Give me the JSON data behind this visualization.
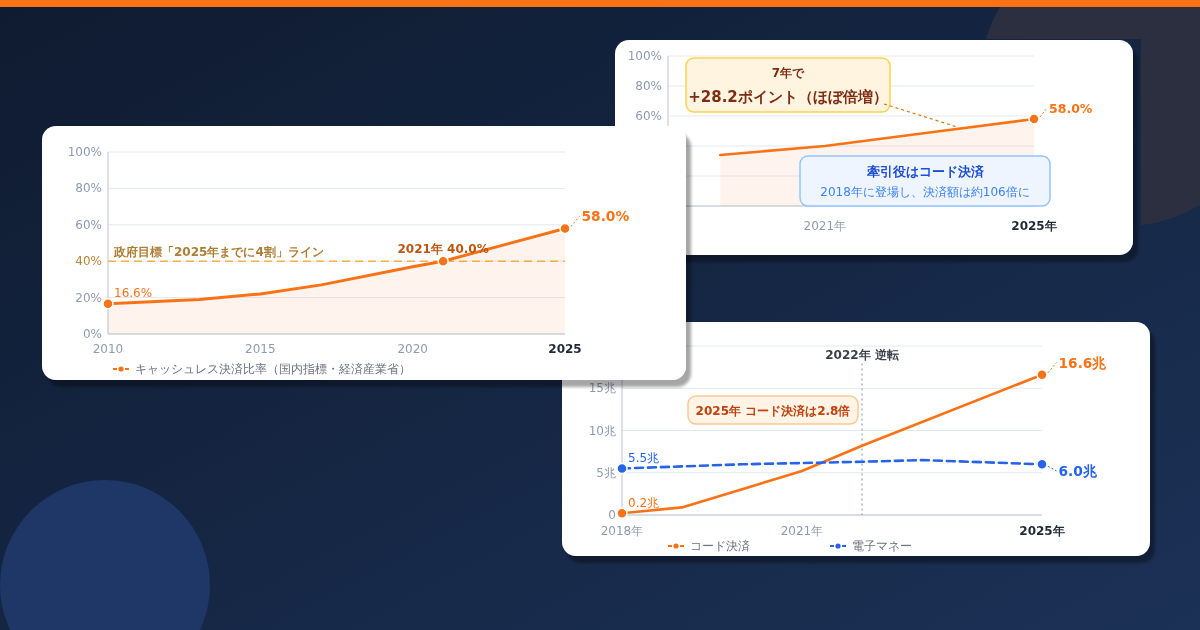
{
  "chart_data": [
    {
      "type": "area",
      "x": [
        2010,
        2013,
        2015,
        2017,
        2020,
        2021,
        2025
      ],
      "series": [
        {
          "name": "キャッシュレス決済比率（国内指標・経済産業省）",
          "color": "#f97316",
          "values": [
            16.6,
            19,
            22,
            27,
            37,
            40.0,
            58.0
          ]
        }
      ],
      "xlim": [
        2010,
        2025
      ],
      "xticks": [
        2010,
        2015,
        2020,
        2025
      ],
      "ylim": [
        0,
        100
      ],
      "yticks": [
        {
          "value": 0,
          "label": "0%"
        },
        {
          "value": 20,
          "label": "20%"
        },
        {
          "value": 40,
          "label": "40%"
        },
        {
          "value": 60,
          "label": "60%"
        },
        {
          "value": 80,
          "label": "80%"
        },
        {
          "value": 100,
          "label": "100%"
        }
      ],
      "grid": "y",
      "legend": "bottom",
      "ref_lines": [
        {
          "axis": "y",
          "value": 40,
          "label": "政府目標「2025年までに4割」ライン",
          "color": "#f7b24a",
          "line_style": "dashed"
        }
      ],
      "annotations": [
        {
          "text": "16.6%",
          "x": 2010,
          "y": 16.6
        },
        {
          "text": "2021年 40.0%",
          "x": 2021,
          "y": 40.0
        },
        {
          "text": "58.0%",
          "x": 2025,
          "y": 58.0
        }
      ]
    },
    {
      "type": "area",
      "x": [
        2019,
        2021,
        2023,
        2025
      ],
      "series": [
        {
          "color": "#f97316",
          "values": [
            34,
            40,
            49,
            58.0
          ]
        }
      ],
      "xlim": [
        2018,
        2025
      ],
      "xticks": [
        {
          "value": 2021,
          "label": "2021年"
        },
        {
          "value": 2025,
          "label": "2025年"
        }
      ],
      "ylim": [
        0,
        100
      ],
      "yticks": [
        {
          "value": 0,
          "label": null
        },
        {
          "value": 20,
          "label": null
        },
        {
          "value": 40,
          "label": null
        },
        {
          "value": 60,
          "label": "60%"
        },
        {
          "value": 80,
          "label": "80%"
        },
        {
          "value": 100,
          "label": "100%"
        }
      ],
      "grid": "y",
      "annotations": [
        {
          "text": "58.0%",
          "x": 2025,
          "y": 58.0
        },
        "7年で",
        {
          "text": "+28.2ポイント（ほぼ倍増）",
          "x": 2023.5,
          "y": 51
        },
        "牽引役はコード決済",
        "2018年に登場し、決済額は約106倍に"
      ]
    },
    {
      "type": "line",
      "series": [
        {
          "name": "コード決済",
          "color": "#f97316",
          "x": [
            2018,
            2019,
            2021,
            2022,
            2025
          ],
          "values": [
            0.2,
            0.9,
            5.2,
            8.2,
            16.6
          ]
        },
        {
          "name": "電子マネー",
          "color": "#2563eb",
          "line_style": "dashed",
          "x": [
            2018,
            2020,
            2022,
            2023,
            2025
          ],
          "values": [
            5.5,
            6.0,
            6.3,
            6.5,
            6.0
          ]
        }
      ],
      "xlim": [
        2018,
        2025
      ],
      "xticks": [
        {
          "value": 2018,
          "label": "2018年"
        },
        {
          "value": 2021,
          "label": "2021年"
        },
        {
          "value": 2025,
          "label": "2025年"
        }
      ],
      "ylim": [
        0,
        20
      ],
      "yticks": [
        0,
        {
          "value": 5,
          "label": "5兆"
        },
        {
          "value": 10,
          "label": "10兆"
        },
        {
          "value": 15,
          "label": "15兆"
        },
        {
          "value": 20,
          "label": null
        }
      ],
      "grid": "y",
      "legend": "bottom",
      "ref_lines": [
        {
          "axis": "x",
          "value": 2022,
          "label": "2022年 逆転",
          "color": "#94a3b8",
          "line_style": "dotted"
        }
      ],
      "annotations": [
        {
          "text": "0.2兆",
          "x": 2018,
          "y": 0.2
        },
        {
          "text": "5.5兆",
          "x": 2018,
          "y": 5.5
        },
        {
          "text": "16.6兆",
          "x": 2025,
          "y": 16.6
        },
        {
          "text": "6.0兆",
          "x": 2025,
          "y": 6.0
        },
        "2025年 コード決済は2.8倍"
      ]
    }
  ]
}
